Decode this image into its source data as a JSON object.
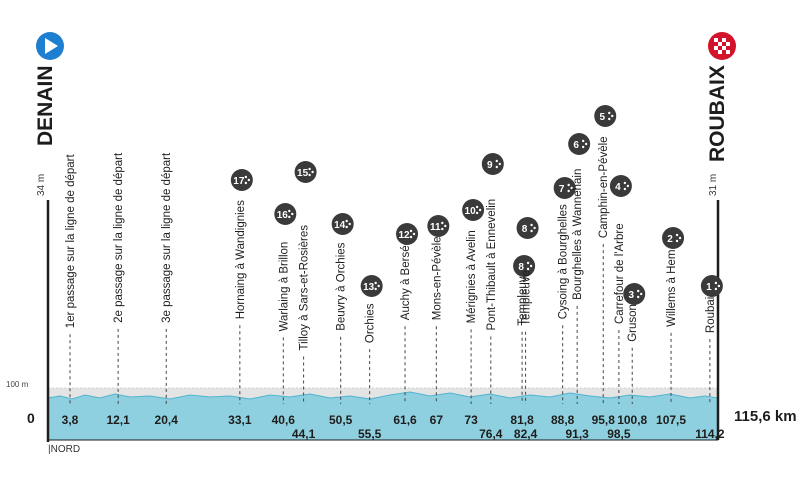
{
  "start": {
    "city": "DENAIN",
    "altitude": "34 m"
  },
  "finish": {
    "city": "ROUBAIX",
    "altitude": "31 m"
  },
  "axis": {
    "zero": "0",
    "hundred": "100 m",
    "total": "115,6 km"
  },
  "region": "NORD",
  "colors": {
    "terrain": "#8fd0e0",
    "terrain_edge": "#3aa9c6",
    "start_icon": "#1e7fd0",
    "finish_icon": "#d3122b",
    "badge": "#3a3a3a",
    "band": "#dedede"
  },
  "chart_data": {
    "type": "profile",
    "total_km": 115.6,
    "xlim": [
      0,
      115.6
    ],
    "points": [
      {
        "km": 3.8,
        "km_label": "3,8",
        "name": "1er passage sur la ligne de départ",
        "sector": null
      },
      {
        "km": 12.1,
        "km_label": "12,1",
        "name": "2e passage sur la ligne de départ",
        "sector": null
      },
      {
        "km": 20.4,
        "km_label": "20,4",
        "name": "3e passage sur la ligne de départ",
        "sector": null
      },
      {
        "km": 33.1,
        "km_label": "33,1",
        "name": "Hornaing à Wandignies",
        "sector": "17"
      },
      {
        "km": 40.6,
        "km_label": "40,6",
        "name": "Warlaing à Brillon",
        "sector": "16"
      },
      {
        "km": 44.1,
        "km_label": "44,1",
        "name": "Tilloy à Sars-et-Rosières",
        "sector": "15"
      },
      {
        "km": 50.5,
        "km_label": "50,5",
        "name": "Beuvry à Orchies",
        "sector": "14"
      },
      {
        "km": 55.5,
        "km_label": "55,5",
        "name": "Orchies",
        "sector": "13"
      },
      {
        "km": 61.6,
        "km_label": "61,6",
        "name": "Auchy à Bersée",
        "sector": "12"
      },
      {
        "km": 67,
        "km_label": "67",
        "name": "Mons-en-Pévèle",
        "sector": "11"
      },
      {
        "km": 73,
        "km_label": "73",
        "name": "Mérignies à Avelin",
        "sector": "10"
      },
      {
        "km": 76.4,
        "km_label": "76,4",
        "name": "Pont-Thibault à Ennevelin",
        "sector": "9"
      },
      {
        "km": 81.8,
        "km_label": "81,8",
        "name": "Templeuve",
        "sector": "8"
      },
      {
        "km": 82.4,
        "km_label": "82,4",
        "name": "Templeuve",
        "sector": "8"
      },
      {
        "km": 88.8,
        "km_label": "88,8",
        "name": "Cysoing à Bourghelles",
        "sector": "7"
      },
      {
        "km": 91.3,
        "km_label": "91,3",
        "name": "Bourghelles à Wannehain",
        "sector": "6"
      },
      {
        "km": 95.8,
        "km_label": "95,8",
        "name": "Camphin-en-Pévèle",
        "sector": "5"
      },
      {
        "km": 98.5,
        "km_label": "98,5",
        "name": "Carrefour de l'Arbre",
        "sector": "4"
      },
      {
        "km": 100.8,
        "km_label": "100,8",
        "name": "Gruson",
        "sector": "3"
      },
      {
        "km": 107.5,
        "km_label": "107,5",
        "name": "Willems à Hem",
        "sector": "2"
      },
      {
        "km": 114.2,
        "km_label": "114,2",
        "name": "Roubaix",
        "sector": "1"
      }
    ]
  }
}
